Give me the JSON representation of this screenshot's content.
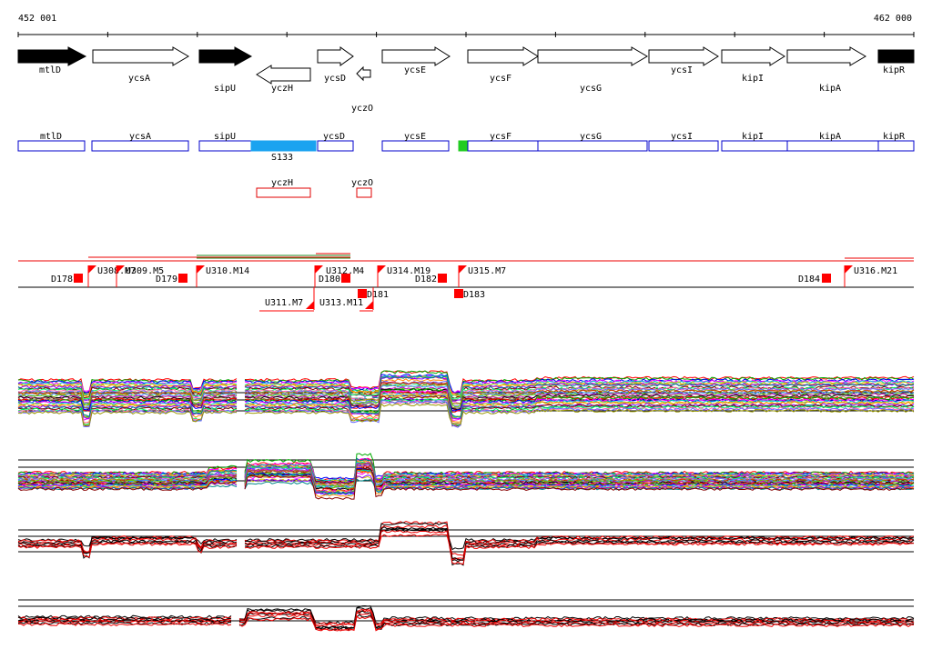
{
  "coords": {
    "start": "452 001",
    "end": "462 000"
  },
  "genes": [
    {
      "label": "mtlD",
      "style": "filled"
    },
    {
      "label": "ycsA",
      "style": "open"
    },
    {
      "label": "sipU",
      "style": "filled"
    },
    {
      "label": "yczH",
      "style": "open"
    },
    {
      "label": "ycsD",
      "style": "open"
    },
    {
      "label": "yczO",
      "style": "open"
    },
    {
      "label": "ycsE",
      "style": "open"
    },
    {
      "label": "ycsF",
      "style": "open"
    },
    {
      "label": "ycsG",
      "style": "open"
    },
    {
      "label": "ycsI",
      "style": "open"
    },
    {
      "label": "kipI",
      "style": "open"
    },
    {
      "label": "kipA",
      "style": "open"
    },
    {
      "label": "kipR",
      "style": "filled"
    }
  ],
  "transcripts": {
    "forward": [
      "mtlD",
      "ycsA",
      "sipU",
      "ycsD",
      "ycsE",
      "ycsF",
      "ycsG",
      "ycsI",
      "kipI",
      "kipA",
      "kipR"
    ],
    "highlight": "S133",
    "reverse": [
      "yczH",
      "yczO"
    ]
  },
  "features": [
    "D178",
    "U308.M7",
    "U309.M5",
    "D179",
    "U310.M14",
    "U311.M7",
    "U312.M4",
    "D180",
    "D181",
    "U313.M11",
    "U314.M19",
    "D182",
    "D183",
    "U315.M7",
    "D184",
    "U316.M21"
  ],
  "colors": {
    "filled": "#000000",
    "transcript_forward": "#0000cc",
    "transcript_reverse": "#e00000",
    "highlight": "#1aa3f0",
    "start_marker": "#22cc22",
    "feature": "#ff0000",
    "overlay_green": "#228b22",
    "profile_red": "#ee0000"
  }
}
